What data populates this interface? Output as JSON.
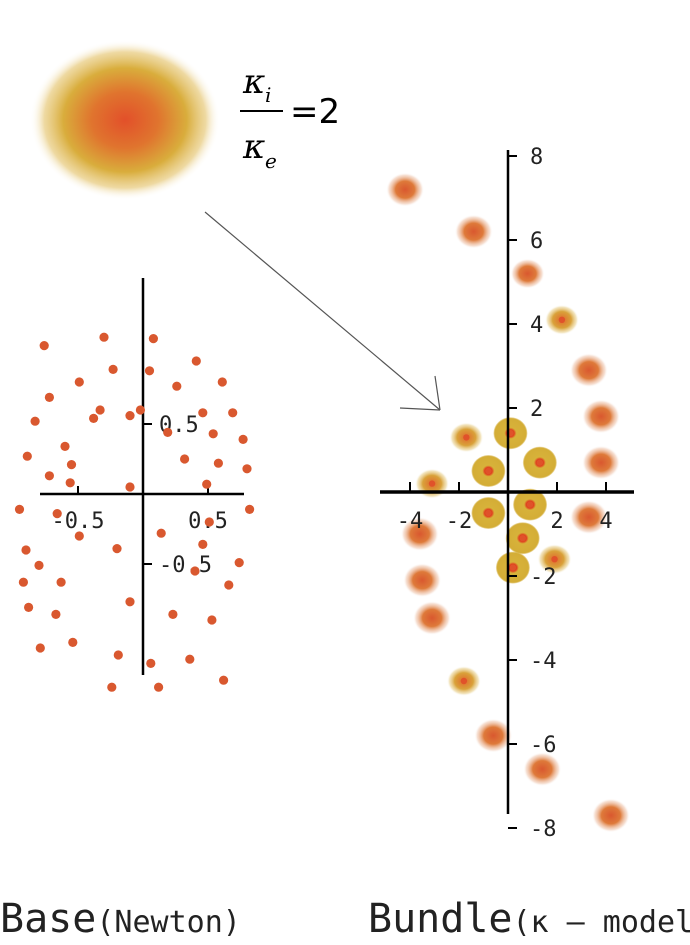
{
  "ratio": {
    "numerator": "κ",
    "numerator_sub": "i",
    "denominator": "κ",
    "denominator_sub": "e",
    "equals": "=2"
  },
  "captions": {
    "base_main": "Base",
    "base_sub": "(Newton)",
    "bundle_main": "Bundle",
    "bundle_sub": "(κ – model)"
  },
  "colors": {
    "dot": "#d9582f",
    "blob_outer": "#d8b23a",
    "blob_inner": "#e0522a",
    "axis": "#000000",
    "arrow": "#555555"
  },
  "chart_data": [
    {
      "type": "scatter",
      "name": "base",
      "xlim": [
        -0.95,
        0.95
      ],
      "ylim": [
        -1.3,
        1.3
      ],
      "x_ticks": [
        "-0.5",
        "0.5"
      ],
      "y_ticks": [
        "0.5",
        "-0.5"
      ],
      "points": [
        [
          -0.76,
          1.06
        ],
        [
          -0.3,
          1.12
        ],
        [
          0.08,
          1.11
        ],
        [
          0.41,
          0.95
        ],
        [
          -0.23,
          0.89
        ],
        [
          -0.49,
          0.8
        ],
        [
          0.26,
          0.77
        ],
        [
          0.61,
          0.8
        ],
        [
          -0.72,
          0.69
        ],
        [
          -0.02,
          0.6
        ],
        [
          0.46,
          0.58
        ],
        [
          0.69,
          0.58
        ],
        [
          -0.83,
          0.52
        ],
        [
          -0.38,
          0.54
        ],
        [
          -0.1,
          0.56
        ],
        [
          0.19,
          0.44
        ],
        [
          0.54,
          0.43
        ],
        [
          0.77,
          0.39
        ],
        [
          -0.89,
          0.27
        ],
        [
          -0.6,
          0.34
        ],
        [
          0.32,
          0.25
        ],
        [
          0.58,
          0.22
        ],
        [
          0.8,
          0.18
        ],
        [
          -0.72,
          0.13
        ],
        [
          -0.55,
          0.21
        ],
        [
          -0.56,
          0.08
        ],
        [
          -0.1,
          0.05
        ],
        [
          0.49,
          0.07
        ],
        [
          -0.95,
          -0.11
        ],
        [
          -0.66,
          -0.14
        ],
        [
          0.51,
          -0.2
        ],
        [
          0.82,
          -0.11
        ],
        [
          -0.9,
          -0.4
        ],
        [
          -0.8,
          -0.51
        ],
        [
          -0.49,
          -0.3
        ],
        [
          -0.2,
          -0.39
        ],
        [
          0.14,
          -0.28
        ],
        [
          0.46,
          -0.36
        ],
        [
          0.74,
          -0.49
        ],
        [
          -0.92,
          -0.63
        ],
        [
          -0.63,
          -0.63
        ],
        [
          0.4,
          -0.55
        ],
        [
          0.66,
          -0.65
        ],
        [
          -0.88,
          -0.81
        ],
        [
          -0.67,
          -0.86
        ],
        [
          -0.1,
          -0.77
        ],
        [
          0.23,
          -0.86
        ],
        [
          0.53,
          -0.9
        ],
        [
          -0.79,
          -1.1
        ],
        [
          -0.54,
          -1.06
        ],
        [
          -0.19,
          -1.15
        ],
        [
          0.06,
          -1.21
        ],
        [
          0.36,
          -1.18
        ],
        [
          0.62,
          -1.33
        ],
        [
          -0.24,
          -1.38
        ],
        [
          0.12,
          -1.38
        ],
        [
          -0.33,
          0.6
        ],
        [
          0.05,
          0.88
        ]
      ]
    },
    {
      "type": "scatter",
      "name": "bundle",
      "xlim": [
        -5,
        5
      ],
      "ylim": [
        -9,
        9
      ],
      "x_ticks": [
        "-4",
        "-2",
        "2",
        "4"
      ],
      "y_ticks": [
        "8",
        "6",
        "4",
        "2",
        "-2",
        "-4",
        "-6",
        "-8"
      ],
      "points": [
        [
          -4.2,
          7.2
        ],
        [
          -1.4,
          6.2
        ],
        [
          0.8,
          5.2
        ],
        [
          2.2,
          4.1
        ],
        [
          3.3,
          2.9
        ],
        [
          3.8,
          1.8
        ],
        [
          -1.7,
          1.3
        ],
        [
          0.1,
          1.4
        ],
        [
          -0.8,
          0.5
        ],
        [
          1.3,
          0.7
        ],
        [
          3.8,
          0.7
        ],
        [
          -3.1,
          0.2
        ],
        [
          0.9,
          -0.3
        ],
        [
          -0.8,
          -0.5
        ],
        [
          3.3,
          -0.6
        ],
        [
          -3.6,
          -1.0
        ],
        [
          0.6,
          -1.1
        ],
        [
          1.9,
          -1.6
        ],
        [
          0.2,
          -1.8
        ],
        [
          -3.5,
          -2.1
        ],
        [
          -3.1,
          -3.0
        ],
        [
          -1.8,
          -4.5
        ],
        [
          -0.6,
          -5.8
        ],
        [
          1.4,
          -6.6
        ],
        [
          4.2,
          -7.7
        ]
      ]
    }
  ]
}
